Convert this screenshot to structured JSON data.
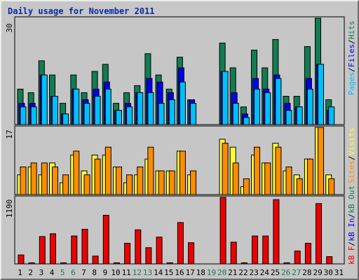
{
  "title": "Daily usage for November 2011",
  "chart_data": [
    {
      "type": "bar",
      "panel": "top",
      "max_label": "30",
      "ymax": 30,
      "legend": [
        "Pages",
        "Files",
        "Hits"
      ],
      "colors": {
        "Pages": "#00bfff",
        "Files": "#0000ee",
        "Hits": "#127d52"
      },
      "categories": [
        "1",
        "2",
        "3",
        "4",
        "5",
        "6",
        "7",
        "8",
        "9",
        "10",
        "11",
        "12",
        "13",
        "14",
        "15",
        "16",
        "17",
        "18",
        "19",
        "20",
        "21",
        "22",
        "23",
        "24",
        "25",
        "26",
        "27",
        "28",
        "29",
        "30",
        "31"
      ],
      "series": [
        {
          "name": "Hits",
          "values": [
            10,
            9,
            18,
            14,
            6,
            14,
            9,
            15,
            17,
            6,
            9,
            11,
            20,
            14,
            10,
            19,
            7,
            0,
            0,
            23,
            16,
            5,
            21,
            16,
            24,
            8,
            8,
            22,
            30,
            7,
            0
          ]
        },
        {
          "name": "Files",
          "values": [
            6,
            6,
            14,
            8,
            3,
            10,
            7,
            10,
            12,
            4,
            6,
            9,
            13,
            12,
            9,
            16,
            7,
            0,
            0,
            15,
            9,
            3,
            13,
            10,
            14,
            6,
            5,
            13,
            17,
            4,
            0
          ]
        },
        {
          "name": "Pages",
          "values": [
            5,
            5,
            14,
            8,
            3,
            10,
            6,
            8,
            10,
            4,
            5,
            9,
            9,
            6,
            7,
            12,
            6,
            0,
            0,
            15,
            6,
            2,
            10,
            9,
            13,
            4,
            5,
            10,
            17,
            5,
            0
          ]
        }
      ]
    },
    {
      "type": "bar",
      "panel": "middle",
      "max_label": "17",
      "ymax": 17,
      "legend": [
        "Sites",
        "Visits"
      ],
      "colors": {
        "Visits": "#ffff33",
        "Sites": "#ff8c00"
      },
      "categories": [
        "1",
        "2",
        "3",
        "4",
        "5",
        "6",
        "7",
        "8",
        "9",
        "10",
        "11",
        "12",
        "13",
        "14",
        "15",
        "16",
        "17",
        "18",
        "19",
        "20",
        "21",
        "22",
        "23",
        "24",
        "25",
        "26",
        "27",
        "28",
        "29",
        "30",
        "31"
      ],
      "series": [
        {
          "name": "Visits",
          "values": [
            5,
            7,
            5,
            8,
            3,
            10,
            6,
            10,
            10,
            7,
            3,
            5,
            9,
            6,
            6,
            11,
            5,
            0,
            0,
            14,
            12,
            2,
            10,
            8,
            13,
            6,
            5,
            9,
            17,
            5,
            0
          ]
        },
        {
          "name": "Sites",
          "values": [
            7,
            8,
            8,
            7,
            5,
            11,
            5,
            9,
            12,
            7,
            5,
            7,
            12,
            6,
            6,
            11,
            6,
            0,
            0,
            13,
            8,
            4,
            12,
            8,
            12,
            7,
            4,
            9,
            17,
            4,
            0
          ]
        }
      ]
    },
    {
      "type": "bar",
      "panel": "bottom",
      "max_label": "1190",
      "ymax": 1190,
      "legend": [
        "kB F",
        "kB In",
        "kB Out"
      ],
      "colors": {
        "kB F": "#ee0000",
        "kB In": "#0000ee",
        "kB Out": "#127d52"
      },
      "categories": [
        "1",
        "2",
        "3",
        "4",
        "5",
        "6",
        "7",
        "8",
        "9",
        "10",
        "11",
        "12",
        "13",
        "14",
        "15",
        "16",
        "17",
        "18",
        "19",
        "20",
        "21",
        "22",
        "23",
        "24",
        "25",
        "26",
        "27",
        "28",
        "29",
        "30",
        "31"
      ],
      "series": [
        {
          "name": "kB F",
          "values": [
            160,
            20,
            490,
            540,
            20,
            500,
            620,
            140,
            870,
            20,
            370,
            610,
            290,
            480,
            20,
            740,
            380,
            0,
            0,
            1190,
            390,
            20,
            500,
            500,
            1150,
            20,
            230,
            370,
            1080,
            130,
            0
          ]
        }
      ]
    }
  ],
  "x_labels": [
    {
      "text": "1",
      "weekend": false
    },
    {
      "text": "2",
      "weekend": false
    },
    {
      "text": "3",
      "weekend": false
    },
    {
      "text": "4",
      "weekend": false
    },
    {
      "text": "5",
      "weekend": true
    },
    {
      "text": "6",
      "weekend": true
    },
    {
      "text": "7",
      "weekend": false
    },
    {
      "text": "8",
      "weekend": false
    },
    {
      "text": "9",
      "weekend": false
    },
    {
      "text": "10",
      "weekend": false
    },
    {
      "text": "11",
      "weekend": false
    },
    {
      "text": "12",
      "weekend": true
    },
    {
      "text": "13",
      "weekend": true
    },
    {
      "text": "14",
      "weekend": false
    },
    {
      "text": "15",
      "weekend": false
    },
    {
      "text": "16",
      "weekend": false
    },
    {
      "text": "17",
      "weekend": false
    },
    {
      "text": "18",
      "weekend": false
    },
    {
      "text": "19",
      "weekend": true
    },
    {
      "text": "20",
      "weekend": true
    },
    {
      "text": "21",
      "weekend": false
    },
    {
      "text": "22",
      "weekend": false
    },
    {
      "text": "23",
      "weekend": false
    },
    {
      "text": "24",
      "weekend": false
    },
    {
      "text": "25",
      "weekend": false
    },
    {
      "text": "26",
      "weekend": true
    },
    {
      "text": "27",
      "weekend": true
    },
    {
      "text": "28",
      "weekend": false
    },
    {
      "text": "29",
      "weekend": false
    },
    {
      "text": "30",
      "weekend": false
    },
    {
      "text": "31",
      "weekend": false
    }
  ],
  "colors": {
    "title": "#0a2a9f",
    "weekday": "#000000",
    "weekend": "#127d52",
    "panel_bg": "#c6c6c6"
  }
}
